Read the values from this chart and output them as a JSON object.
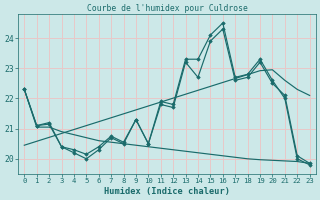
{
  "title": "Courbe de l'humidex pour Culdrose",
  "xlabel": "Humidex (Indice chaleur)",
  "xlim": [
    -0.5,
    23.5
  ],
  "ylim": [
    19.5,
    24.8
  ],
  "yticks": [
    20,
    21,
    22,
    23,
    24
  ],
  "xticks": [
    0,
    1,
    2,
    3,
    4,
    5,
    6,
    7,
    8,
    9,
    10,
    11,
    12,
    13,
    14,
    15,
    16,
    17,
    18,
    19,
    20,
    21,
    22,
    23
  ],
  "bg_color": "#cce8e8",
  "line_color": "#1a6b6b",
  "grid_color": "#e8c8c8",
  "series_main": [
    22.3,
    21.1,
    21.2,
    20.4,
    20.2,
    20.0,
    20.3,
    20.7,
    20.5,
    21.3,
    20.5,
    21.9,
    21.8,
    23.3,
    23.3,
    24.1,
    24.5,
    22.7,
    22.8,
    23.3,
    22.6,
    22.0,
    20.0,
    19.8
  ],
  "series_second": [
    22.3,
    21.1,
    21.15,
    20.4,
    20.3,
    20.15,
    20.4,
    20.75,
    20.55,
    21.3,
    20.5,
    21.8,
    21.7,
    23.2,
    22.7,
    23.9,
    24.3,
    22.6,
    22.7,
    23.2,
    22.5,
    22.1,
    20.1,
    19.85
  ],
  "series_trend": [
    20.45,
    20.58,
    20.71,
    20.84,
    20.97,
    21.1,
    21.23,
    21.36,
    21.49,
    21.62,
    21.75,
    21.88,
    22.01,
    22.14,
    22.27,
    22.4,
    22.53,
    22.66,
    22.79,
    22.92,
    22.95,
    22.6,
    22.3,
    22.1
  ],
  "series_flat": [
    22.3,
    21.05,
    21.05,
    20.9,
    20.8,
    20.7,
    20.6,
    20.55,
    20.5,
    20.45,
    20.4,
    20.35,
    20.3,
    20.25,
    20.2,
    20.15,
    20.1,
    20.05,
    20.0,
    19.97,
    19.95,
    19.93,
    19.91,
    19.85
  ]
}
